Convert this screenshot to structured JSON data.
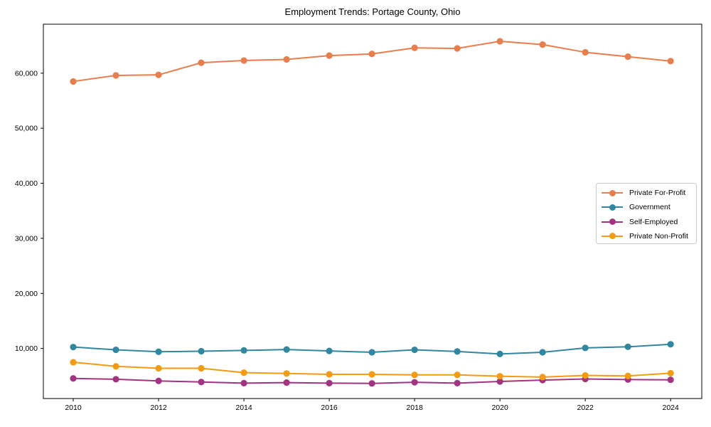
{
  "chart_data": {
    "type": "line",
    "title": "Employment Trends: Portage County, Ohio",
    "xlabel": "",
    "ylabel": "",
    "grid": false,
    "legend_position": "middle-right",
    "x": [
      2010,
      2011,
      2012,
      2013,
      2014,
      2015,
      2016,
      2017,
      2018,
      2019,
      2020,
      2021,
      2022,
      2023,
      2024
    ],
    "series": [
      {
        "name": "Private For-Profit",
        "color": "#e87d4e",
        "marker": "circle",
        "values": [
          58500,
          59600,
          59700,
          61900,
          62300,
          62500,
          63200,
          63500,
          64600,
          64500,
          65800,
          65200,
          63800,
          63000,
          62200
        ]
      },
      {
        "name": "Government",
        "color": "#3186a0",
        "marker": "circle",
        "values": [
          10250,
          9750,
          9400,
          9500,
          9650,
          9800,
          9550,
          9300,
          9750,
          9450,
          9000,
          9300,
          10100,
          10300,
          10750
        ]
      },
      {
        "name": "Self-Employed",
        "color": "#a23582",
        "marker": "circle",
        "values": [
          4550,
          4400,
          4100,
          3900,
          3700,
          3800,
          3700,
          3650,
          3850,
          3700,
          4000,
          4250,
          4450,
          4350,
          4300
        ]
      },
      {
        "name": "Private Non-Profit",
        "color": "#f39b12",
        "marker": "circle",
        "values": [
          7500,
          6750,
          6400,
          6400,
          5600,
          5450,
          5300,
          5300,
          5200,
          5200,
          4950,
          4800,
          5100,
          5000,
          5500
        ]
      }
    ],
    "xticks": [
      2010,
      2012,
      2014,
      2016,
      2018,
      2020,
      2022,
      2024
    ],
    "xtick_labels": [
      "2010",
      "2012",
      "2014",
      "2016",
      "2018",
      "2020",
      "2022",
      "2024"
    ],
    "yticks": [
      10000,
      20000,
      30000,
      40000,
      50000,
      60000
    ],
    "ytick_labels": [
      "10,000",
      "20,000",
      "30,000",
      "40,000",
      "50,000",
      "60,000"
    ],
    "xlim": [
      2009.3,
      2024.73
    ],
    "ylim": [
      900,
      68900
    ]
  }
}
